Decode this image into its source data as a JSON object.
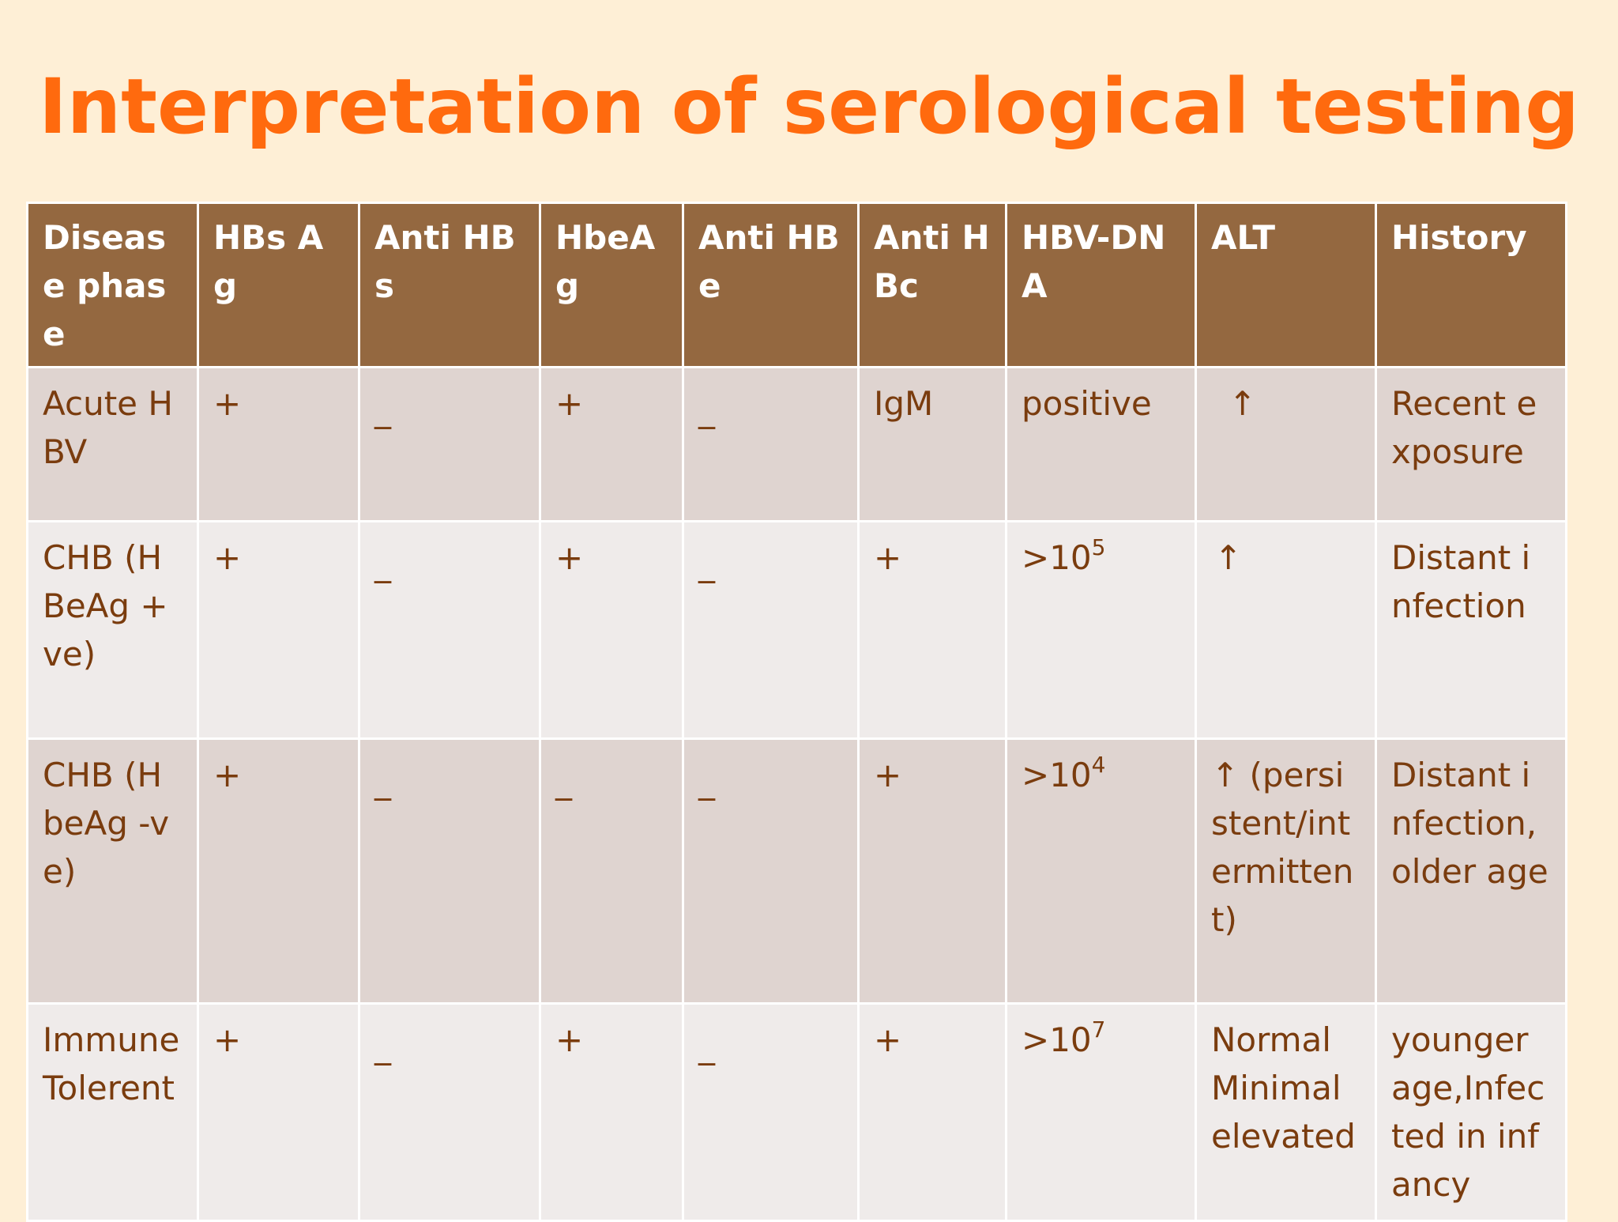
{
  "slide": {
    "title": "Interpretation of serological testing"
  },
  "table": {
    "headers": [
      "Disease phase",
      "HBs Ag",
      "Anti HBs",
      "HbeAg",
      "Anti HBe",
      "Anti HBc",
      "HBV-DNA",
      "ALT",
      "History"
    ],
    "rows": [
      {
        "phase": "Acute HBV",
        "hbsag": "+",
        "antihbs": "_",
        "hbeag": "+",
        "antihbe": "_",
        "antihbc": "IgM",
        "hbvdna": "positive",
        "alt": "↑",
        "history": "Recent exposure"
      },
      {
        "phase": "CHB (HBeAg +ve)",
        "hbsag": "+",
        "antihbs": "_",
        "hbeag": "+",
        "antihbe": "_",
        "antihbc": "+",
        "hbvdna_base": ">10",
        "hbvdna_exp": "5",
        "alt": "↑",
        "history": "Distant infection"
      },
      {
        "phase": "CHB (HbeAg -ve)",
        "hbsag": "+",
        "antihbs": "_",
        "hbeag": "_",
        "antihbe": "_",
        "antihbc": "+",
        "hbvdna_base": ">10",
        "hbvdna_exp": "4",
        "alt": "↑ (persistent/intermittent)",
        "history": "Distant infection, older age"
      },
      {
        "phase": "Immune Tolerent",
        "hbsag": "+",
        "antihbs": "_",
        "hbeag": "+",
        "antihbe": "_",
        "antihbc": "+",
        "hbvdna_base": ">10",
        "hbvdna_exp": "7",
        "alt": "Normal Minimal elevated",
        "history": "younger age,Infected in infancy"
      }
    ]
  }
}
